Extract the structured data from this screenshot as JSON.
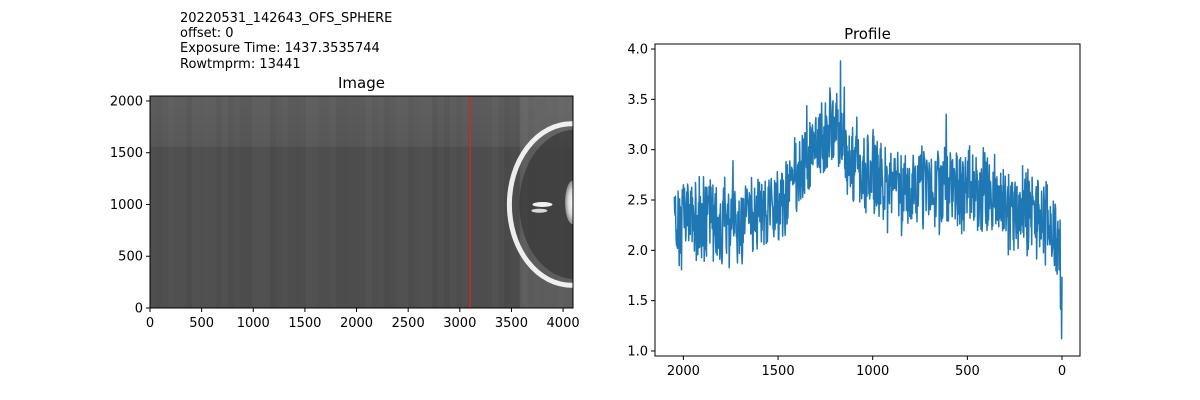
{
  "header": {
    "lines": [
      "20220531_142643_OFS_SPHERE",
      "offset: 0",
      "Exposure Time: 1437.3535744",
      "Rowtmprm: 13441"
    ]
  },
  "chart_data": [
    {
      "type": "heatmap",
      "title": "Image",
      "xlabel": "",
      "ylabel": "",
      "xlim": [
        0,
        4096
      ],
      "ylim": [
        0,
        2048
      ],
      "xticks": [
        0,
        500,
        1000,
        1500,
        2000,
        2500,
        3000,
        3500,
        4000
      ],
      "yticks": [
        0,
        500,
        1000,
        1500,
        2000
      ],
      "grid": false,
      "colormap": "gray",
      "marker_line": {
        "orientation": "vertical",
        "x": 3100,
        "color": "#d62728"
      },
      "features": {
        "bright_band_top_rows": [
          1560,
          2048
        ],
        "sphere_arc_center_x": 4080,
        "sphere_arc_center_y": 1000,
        "sphere_arc_radius": 600
      }
    },
    {
      "type": "line",
      "title": "Profile",
      "xlabel": "",
      "ylabel": "",
      "xlim": [
        2150,
        -95
      ],
      "ylim": [
        0.95,
        4.05
      ],
      "xticks": [
        2000,
        1500,
        1000,
        500,
        0
      ],
      "yticks": [
        1.0,
        1.5,
        2.0,
        2.5,
        3.0,
        3.5,
        4.0
      ],
      "xaxis_inverted": true,
      "grid": false,
      "color": "#1f77b4",
      "series": [
        {
          "x": [
            2048,
            2000,
            1900,
            1800,
            1700,
            1600,
            1500,
            1400,
            1300,
            1250,
            1200,
            1100,
            1000,
            900,
            800,
            700,
            600,
            500,
            400,
            300,
            200,
            100,
            50,
            15,
            5,
            0
          ],
          "values": [
            2.3,
            2.3,
            2.35,
            2.3,
            2.3,
            2.35,
            2.45,
            2.7,
            3.05,
            3.2,
            3.15,
            2.9,
            2.75,
            2.6,
            2.6,
            2.65,
            2.65,
            2.6,
            2.55,
            2.45,
            2.4,
            2.3,
            2.2,
            2.0,
            1.6,
            1.5
          ],
          "noise_amplitude": 0.45
        }
      ]
    }
  ]
}
